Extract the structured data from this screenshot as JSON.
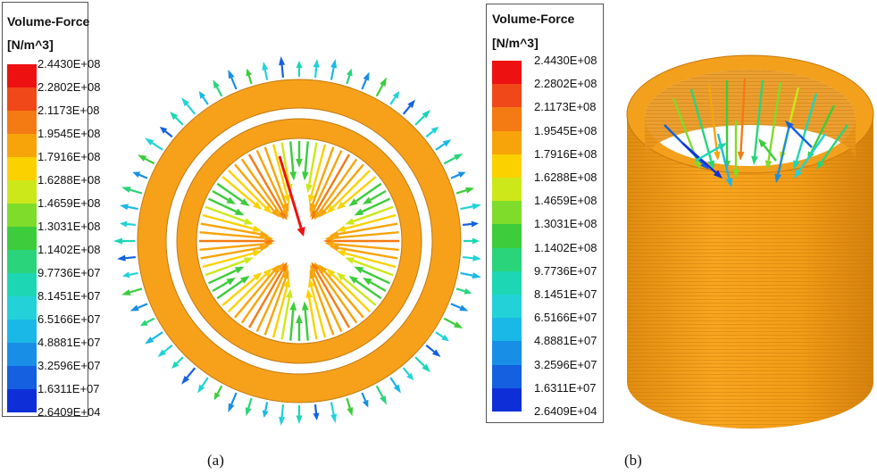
{
  "legend": {
    "title": "Volume-Force",
    "unit": "[N/m^3]",
    "ticks": [
      "2.4430E+08",
      "2.2802E+08",
      "2.1173E+08",
      "1.9545E+08",
      "1.7916E+08",
      "1.6288E+08",
      "1.4659E+08",
      "1.3031E+08",
      "1.1402E+08",
      "9.7736E+07",
      "8.1451E+07",
      "6.5166E+07",
      "4.8881E+07",
      "3.2596E+07",
      "1.6311E+07",
      "2.6409E+04"
    ],
    "colors": [
      "#ee1111",
      "#f04818",
      "#f47a14",
      "#f7a40a",
      "#fbd100",
      "#cde81a",
      "#7fdc2a",
      "#3ccc3c",
      "#2ad47a",
      "#1cd6b4",
      "#22d2d8",
      "#1ab8e6",
      "#188ee6",
      "#1460e0",
      "#0e2fd8"
    ]
  },
  "panels": [
    {
      "caption": "(a)"
    },
    {
      "caption": "(b)"
    }
  ],
  "colors": {
    "cylinder": "#f7a11a",
    "cylinder_dark": "#d88812"
  }
}
